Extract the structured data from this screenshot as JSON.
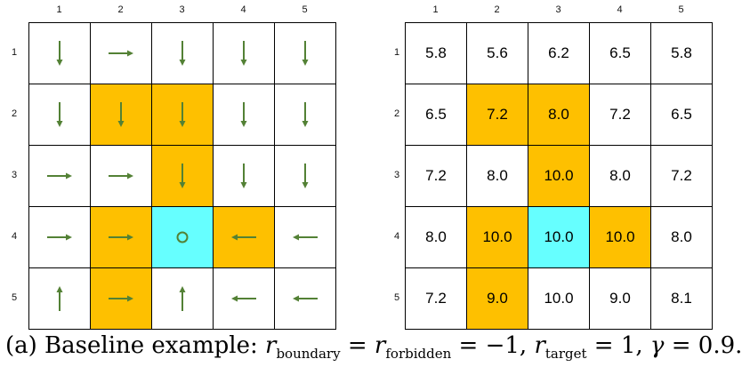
{
  "columns": [
    "1",
    "2",
    "3",
    "4",
    "5"
  ],
  "rows": [
    "1",
    "2",
    "3",
    "4",
    "5"
  ],
  "colors": {
    "forbidden": "#fec000",
    "target": "#66ffff",
    "arrow": "#538135",
    "border": "#000000"
  },
  "cell_types": [
    [
      "normal",
      "normal",
      "normal",
      "normal",
      "normal"
    ],
    [
      "normal",
      "forbidden",
      "forbidden",
      "normal",
      "normal"
    ],
    [
      "normal",
      "normal",
      "forbidden",
      "normal",
      "normal"
    ],
    [
      "normal",
      "forbidden",
      "target",
      "forbidden",
      "normal"
    ],
    [
      "normal",
      "forbidden",
      "normal",
      "normal",
      "normal"
    ]
  ],
  "policy": [
    [
      "down",
      "right",
      "down",
      "down",
      "down"
    ],
    [
      "down",
      "down",
      "down",
      "down",
      "down"
    ],
    [
      "right",
      "right",
      "down",
      "down",
      "down"
    ],
    [
      "right",
      "right",
      "stay",
      "left",
      "left"
    ],
    [
      "up",
      "right",
      "up",
      "left",
      "left"
    ]
  ],
  "state_values": [
    [
      "5.8",
      "5.6",
      "6.2",
      "6.5",
      "5.8"
    ],
    [
      "6.5",
      "7.2",
      "8.0",
      "7.2",
      "6.5"
    ],
    [
      "7.2",
      "8.0",
      "10.0",
      "8.0",
      "7.2"
    ],
    [
      "8.0",
      "10.0",
      "10.0",
      "10.0",
      "8.0"
    ],
    [
      "7.2",
      "9.0",
      "10.0",
      "9.0",
      "8.1"
    ]
  ],
  "caption": {
    "prefix": "(a) Baseline example: ",
    "r": "r",
    "sub_boundary": "boundary",
    "eq1": " = ",
    "sub_forbidden": "forbidden",
    "eq2": " = −1, ",
    "sub_target": "target",
    "eq3": " = 1, ",
    "gamma": "γ",
    "eq4": " = 0.9."
  }
}
